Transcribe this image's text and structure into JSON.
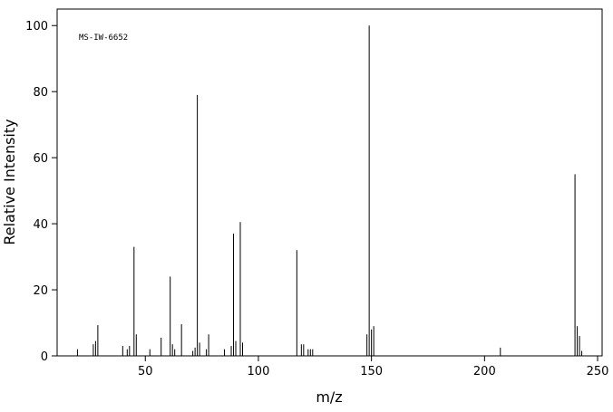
{
  "chart_data": {
    "type": "stick",
    "annotation": "MS-IW-6652",
    "xlabel": "m/z",
    "ylabel": "Relative Intensity",
    "x": [
      20,
      27,
      28,
      29,
      40,
      42,
      43,
      45,
      46,
      52,
      57,
      61,
      62,
      63,
      66,
      71,
      72,
      73,
      74,
      77,
      78,
      85,
      88,
      89,
      90,
      92,
      93,
      117,
      119,
      120,
      122,
      123,
      124,
      148,
      149,
      150,
      151,
      207,
      240,
      241,
      242,
      243
    ],
    "values": [
      2,
      3.5,
      4.5,
      9.3,
      3,
      2,
      3,
      33,
      6.5,
      2,
      5.5,
      24,
      3.5,
      2,
      9.6,
      1.5,
      2.5,
      79,
      4,
      2,
      6.5,
      2,
      3,
      37,
      4.5,
      40.5,
      4,
      32,
      3.5,
      3.5,
      2,
      2,
      2,
      6.5,
      100,
      8,
      9,
      2.5,
      55,
      9,
      6,
      1.5
    ],
    "color": "#000000",
    "xlim": [
      11,
      252
    ],
    "ylim": [
      0,
      105
    ],
    "xticks": [
      50,
      100,
      150,
      200,
      250
    ],
    "yticks": [
      0,
      20,
      40,
      60,
      80,
      100
    ]
  }
}
